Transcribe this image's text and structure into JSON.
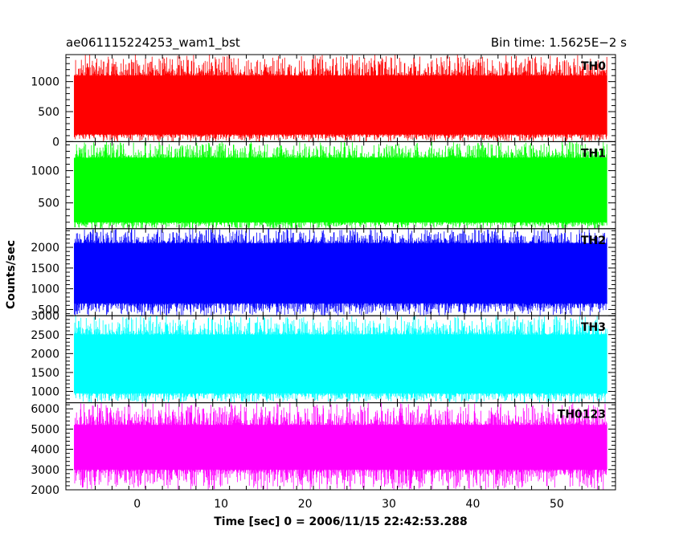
{
  "header": {
    "title_left": "ae061115224253_wam1_bst",
    "title_right": "Bin time: 1.5625E−2 s"
  },
  "chart_data": {
    "type": "line",
    "title": "ae061115224253_wam1_bst",
    "subtitle": "Bin time: 1.5625E−2 s",
    "xlabel": "Time [sec] 0 = 2006/11/15 22:42:53.288",
    "ylabel": "Counts/sec",
    "xlim": [
      -8.5,
      57
    ],
    "data_x_range": [
      -7.5,
      56
    ],
    "bin_time": 0.015625,
    "x_ticks": [
      0,
      10,
      20,
      30,
      40,
      50
    ],
    "grid": false,
    "legend": "none",
    "series": [
      {
        "name": "TH0",
        "color": "#ff0000",
        "ylim": [
          0,
          1450
        ],
        "y_ticks": [
          0,
          500,
          1000
        ],
        "low": 120,
        "high": 1100,
        "min": 0,
        "max": 1450
      },
      {
        "name": "TH1",
        "color": "#00ff00",
        "ylim": [
          100,
          1450
        ],
        "y_ticks": [
          500,
          1000
        ],
        "low": 200,
        "high": 1200,
        "min": 100,
        "max": 1450
      },
      {
        "name": "TH2",
        "color": "#0000ff",
        "ylim": [
          350,
          2450
        ],
        "y_ticks": [
          500,
          1000,
          1500,
          2000
        ],
        "low": 650,
        "high": 2100,
        "min": 350,
        "max": 2450
      },
      {
        "name": "TH3",
        "color": "#00ffff",
        "ylim": [
          700,
          3000
        ],
        "y_ticks": [
          1000,
          1500,
          2000,
          2500,
          3000
        ],
        "low": 950,
        "high": 2500,
        "min": 700,
        "max": 3000
      },
      {
        "name": "TH0123",
        "color": "#ff00ff",
        "ylim": [
          2000,
          6300
        ],
        "y_ticks": [
          2000,
          3000,
          4000,
          5000,
          6000
        ],
        "low": 3000,
        "high": 5200,
        "min": 2000,
        "max": 6300
      }
    ]
  }
}
